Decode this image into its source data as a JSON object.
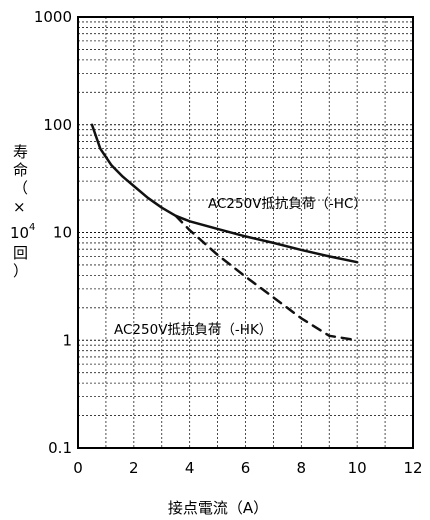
{
  "chart_data": {
    "type": "line",
    "title": "",
    "xlabel": "接点電流（A）",
    "ylabel_lines": [
      "寿",
      "命",
      "（",
      "×",
      "10",
      "4",
      "回",
      "）"
    ],
    "xlim": [
      0,
      12
    ],
    "ylim": [
      0.1,
      1000
    ],
    "yscale": "log",
    "x_ticks": [
      0,
      2,
      4,
      6,
      8,
      10,
      12
    ],
    "x_tick_labels": [
      "0",
      "2",
      "4",
      "6",
      "8",
      "10",
      "12"
    ],
    "y_ticks": [
      0.1,
      1,
      10,
      100,
      1000
    ],
    "y_tick_labels": [
      "0.1",
      "1",
      "10",
      "100",
      "1000"
    ],
    "grid": true,
    "series": [
      {
        "name": "AC250V抵抗負荷（-HC）",
        "style": "solid",
        "x": [
          0.5,
          0.8,
          1.2,
          1.6,
          2.0,
          2.5,
          3.0,
          3.5,
          4.0,
          5.0,
          6.0,
          7.0,
          8.0,
          9.0,
          10.0
        ],
        "y": [
          100,
          60,
          42,
          33,
          27,
          21,
          17,
          14.3,
          12.7,
          10.8,
          9.2,
          8.0,
          6.9,
          6.0,
          5.3
        ]
      },
      {
        "name": "AC250V抵抗負荷（-HK）",
        "style": "dashed",
        "x": [
          3.5,
          4.0,
          5.0,
          6.0,
          7.0,
          8.0,
          9.0,
          10.0
        ],
        "y": [
          14.3,
          10.5,
          6.2,
          3.9,
          2.5,
          1.6,
          1.1,
          1.0
        ]
      }
    ],
    "annotations": [
      {
        "text": "AC250V抵抗負荷（-HC）",
        "series": 0
      },
      {
        "text": "AC250V抵抗負荷（-HK）",
        "series": 1
      }
    ]
  }
}
